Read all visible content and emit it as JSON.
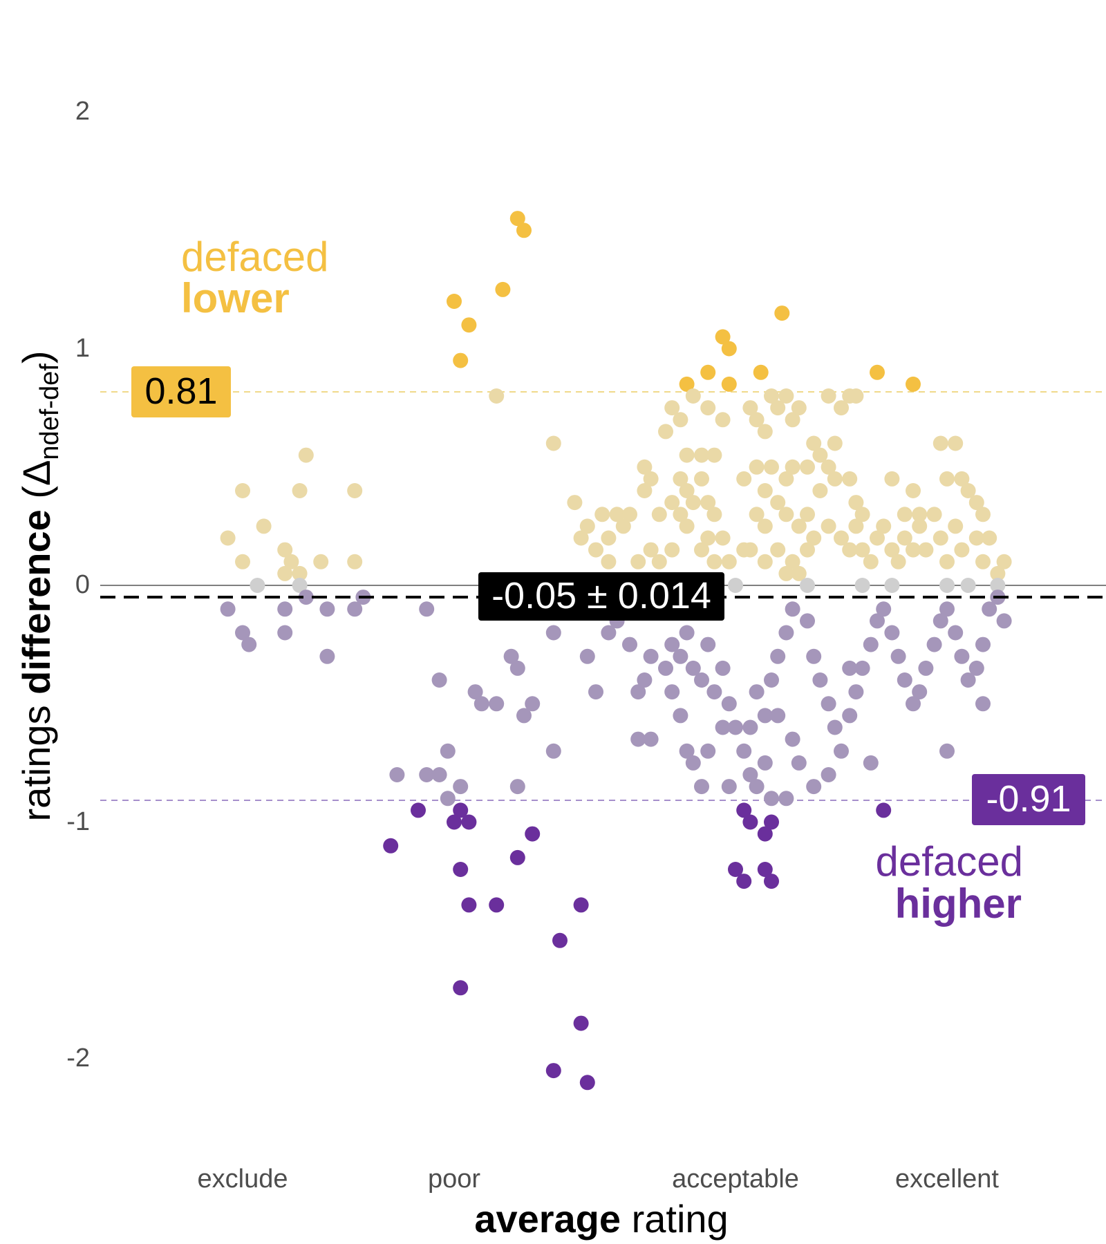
{
  "chart_data": {
    "type": "scatter",
    "title": "",
    "xlabel": {
      "bold": "average",
      "regular": " rating"
    },
    "ylabel": {
      "regular": "ratings ",
      "bold": "difference",
      "symbol": " (Δ",
      "subscript": "ndef-def",
      "close": ")"
    },
    "x_categories": [
      "exclude",
      "poor",
      "acceptable",
      "excellent"
    ],
    "x_category_positions": [
      1,
      2,
      3.33,
      4.33
    ],
    "xlim": [
      0.0,
      5.0
    ],
    "y_ticks": [
      {
        "value": 2,
        "label": "2"
      },
      {
        "value": 1,
        "label": "1"
      },
      {
        "value": 0,
        "label": "0"
      },
      {
        "value": -1,
        "label": "-1"
      },
      {
        "value": -2,
        "label": "-2"
      }
    ],
    "ylim": [
      -2.45,
      2.45
    ],
    "grid": false,
    "colors": {
      "lower_strong": "#f4c042",
      "lower_light": "#ead9a7",
      "neutral": "#cfcfcf",
      "higher_light": "#a596ba",
      "higher_strong": "#6a2f9c",
      "zero_line": "#7f7f7f",
      "mean_line": "#000000"
    },
    "reference_lines": {
      "upper": {
        "value": 0.81,
        "label": "0.81"
      },
      "lower": {
        "value": -0.91,
        "label": "-0.91"
      },
      "mean": {
        "value": -0.05,
        "label": "-0.05 ± 0.014"
      }
    },
    "annotations": {
      "lower": {
        "line1": "defaced",
        "line2": "lower"
      },
      "higher": {
        "line1": "defaced",
        "line2": "higher"
      }
    },
    "series": [
      {
        "group": "lower_strong",
        "points": [
          [
            2.3,
            1.55
          ],
          [
            2.33,
            1.5
          ],
          [
            2.23,
            1.25
          ],
          [
            2.0,
            1.2
          ],
          [
            2.07,
            1.1
          ],
          [
            2.03,
            0.95
          ],
          [
            3.55,
            1.15
          ],
          [
            3.27,
            1.05
          ],
          [
            3.3,
            1.0
          ],
          [
            3.2,
            0.9
          ],
          [
            3.45,
            0.9
          ],
          [
            3.1,
            0.85
          ],
          [
            3.3,
            0.85
          ],
          [
            4.0,
            0.9
          ],
          [
            4.17,
            0.85
          ]
        ]
      },
      {
        "group": "lower_light",
        "points": [
          [
            1.0,
            0.4
          ],
          [
            1.27,
            0.4
          ],
          [
            1.53,
            0.4
          ],
          [
            1.3,
            0.55
          ],
          [
            1.1,
            0.25
          ],
          [
            0.93,
            0.2
          ],
          [
            1.2,
            0.15
          ],
          [
            1.0,
            0.1
          ],
          [
            1.23,
            0.1
          ],
          [
            1.37,
            0.1
          ],
          [
            1.53,
            0.1
          ],
          [
            1.2,
            0.05
          ],
          [
            1.27,
            0.05
          ],
          [
            2.2,
            0.8
          ],
          [
            2.47,
            0.6
          ],
          [
            2.57,
            0.35
          ],
          [
            2.6,
            0.2
          ],
          [
            2.67,
            0.15
          ],
          [
            2.63,
            0.25
          ],
          [
            2.7,
            0.3
          ],
          [
            2.77,
            0.3
          ],
          [
            2.73,
            0.2
          ],
          [
            2.8,
            0.25
          ],
          [
            2.83,
            0.3
          ],
          [
            2.73,
            0.1
          ],
          [
            2.87,
            0.1
          ],
          [
            2.93,
            0.15
          ],
          [
            2.97,
            0.1
          ],
          [
            3.03,
            0.15
          ],
          [
            2.9,
            0.5
          ],
          [
            2.93,
            0.45
          ],
          [
            2.9,
            0.4
          ],
          [
            2.97,
            0.3
          ],
          [
            3.03,
            0.35
          ],
          [
            3.07,
            0.45
          ],
          [
            3.1,
            0.4
          ],
          [
            3.13,
            0.35
          ],
          [
            3.17,
            0.45
          ],
          [
            3.2,
            0.35
          ],
          [
            3.23,
            0.3
          ],
          [
            3.07,
            0.7
          ],
          [
            3.13,
            0.8
          ],
          [
            3.1,
            0.55
          ],
          [
            3.17,
            0.55
          ],
          [
            3.23,
            0.55
          ],
          [
            3.27,
            0.7
          ],
          [
            3.07,
            0.3
          ],
          [
            3.1,
            0.25
          ],
          [
            3.17,
            0.15
          ],
          [
            3.2,
            0.2
          ],
          [
            3.27,
            0.2
          ],
          [
            3.3,
            0.1
          ],
          [
            3.37,
            0.15
          ],
          [
            3.23,
            0.1
          ],
          [
            3.4,
            0.75
          ],
          [
            3.43,
            0.7
          ],
          [
            3.47,
            0.65
          ],
          [
            3.5,
            0.8
          ],
          [
            3.53,
            0.75
          ],
          [
            3.57,
            0.8
          ],
          [
            3.6,
            0.7
          ],
          [
            3.63,
            0.75
          ],
          [
            3.37,
            0.45
          ],
          [
            3.43,
            0.5
          ],
          [
            3.5,
            0.5
          ],
          [
            3.57,
            0.45
          ],
          [
            3.6,
            0.5
          ],
          [
            3.67,
            0.5
          ],
          [
            3.7,
            0.6
          ],
          [
            3.73,
            0.55
          ],
          [
            3.77,
            0.5
          ],
          [
            3.8,
            0.6
          ],
          [
            3.43,
            0.3
          ],
          [
            3.47,
            0.25
          ],
          [
            3.53,
            0.35
          ],
          [
            3.57,
            0.3
          ],
          [
            3.63,
            0.25
          ],
          [
            3.67,
            0.3
          ],
          [
            3.4,
            0.15
          ],
          [
            3.47,
            0.1
          ],
          [
            3.53,
            0.15
          ],
          [
            3.6,
            0.1
          ],
          [
            3.63,
            0.05
          ],
          [
            3.67,
            0.15
          ],
          [
            3.7,
            0.2
          ],
          [
            3.57,
            0.05
          ],
          [
            3.77,
            0.8
          ],
          [
            3.83,
            0.75
          ],
          [
            3.87,
            0.8
          ],
          [
            3.9,
            0.8
          ],
          [
            3.8,
            0.45
          ],
          [
            3.87,
            0.45
          ],
          [
            3.9,
            0.35
          ],
          [
            3.93,
            0.3
          ],
          [
            3.77,
            0.25
          ],
          [
            3.83,
            0.2
          ],
          [
            3.87,
            0.15
          ],
          [
            3.9,
            0.25
          ],
          [
            3.93,
            0.15
          ],
          [
            3.97,
            0.1
          ],
          [
            4.0,
            0.2
          ],
          [
            4.03,
            0.25
          ],
          [
            4.07,
            0.15
          ],
          [
            4.1,
            0.1
          ],
          [
            4.13,
            0.2
          ],
          [
            4.17,
            0.15
          ],
          [
            4.2,
            0.25
          ],
          [
            4.23,
            0.15
          ],
          [
            4.07,
            0.45
          ],
          [
            4.13,
            0.3
          ],
          [
            4.17,
            0.4
          ],
          [
            4.2,
            0.3
          ],
          [
            4.27,
            0.3
          ],
          [
            4.3,
            0.6
          ],
          [
            4.33,
            0.45
          ],
          [
            4.37,
            0.6
          ],
          [
            4.4,
            0.45
          ],
          [
            4.43,
            0.4
          ],
          [
            4.47,
            0.35
          ],
          [
            4.5,
            0.3
          ],
          [
            4.3,
            0.2
          ],
          [
            4.33,
            0.1
          ],
          [
            4.37,
            0.25
          ],
          [
            4.4,
            0.15
          ],
          [
            4.47,
            0.2
          ],
          [
            4.5,
            0.1
          ],
          [
            4.53,
            0.2
          ],
          [
            4.57,
            0.05
          ],
          [
            4.6,
            0.1
          ],
          [
            3.03,
            0.75
          ],
          [
            3.0,
            0.65
          ],
          [
            3.47,
            0.4
          ],
          [
            3.73,
            0.4
          ],
          [
            3.2,
            0.75
          ]
        ]
      },
      {
        "group": "neutral",
        "points": [
          [
            1.07,
            0.0
          ],
          [
            1.27,
            0.0
          ],
          [
            3.33,
            0.0
          ],
          [
            3.67,
            0.0
          ],
          [
            3.93,
            0.0
          ],
          [
            4.07,
            0.0
          ],
          [
            4.33,
            0.0
          ],
          [
            4.43,
            0.0
          ],
          [
            4.57,
            0.0
          ]
        ]
      },
      {
        "group": "higher_light",
        "points": [
          [
            0.93,
            -0.1
          ],
          [
            1.0,
            -0.2
          ],
          [
            1.03,
            -0.25
          ],
          [
            1.2,
            -0.1
          ],
          [
            1.2,
            -0.2
          ],
          [
            1.3,
            -0.05
          ],
          [
            1.4,
            -0.1
          ],
          [
            1.4,
            -0.3
          ],
          [
            1.53,
            -0.1
          ],
          [
            1.57,
            -0.05
          ],
          [
            1.87,
            -0.1
          ],
          [
            1.93,
            -0.4
          ],
          [
            1.87,
            -0.8
          ],
          [
            1.93,
            -0.8
          ],
          [
            1.73,
            -0.8
          ],
          [
            1.97,
            -0.7
          ],
          [
            1.97,
            -0.9
          ],
          [
            2.03,
            -0.85
          ],
          [
            2.1,
            -0.45
          ],
          [
            2.13,
            -0.5
          ],
          [
            2.2,
            -0.5
          ],
          [
            2.27,
            -0.3
          ],
          [
            2.3,
            -0.35
          ],
          [
            2.33,
            -0.55
          ],
          [
            2.37,
            -0.5
          ],
          [
            2.47,
            -0.7
          ],
          [
            2.3,
            -0.85
          ],
          [
            2.47,
            -0.2
          ],
          [
            2.63,
            -0.3
          ],
          [
            2.67,
            -0.45
          ],
          [
            2.73,
            -0.2
          ],
          [
            2.77,
            -0.15
          ],
          [
            2.83,
            -0.25
          ],
          [
            2.87,
            -0.45
          ],
          [
            2.9,
            -0.4
          ],
          [
            2.93,
            -0.3
          ],
          [
            2.87,
            -0.65
          ],
          [
            2.93,
            -0.65
          ],
          [
            3.0,
            -0.35
          ],
          [
            3.03,
            -0.45
          ],
          [
            3.07,
            -0.55
          ],
          [
            3.1,
            -0.7
          ],
          [
            3.13,
            -0.75
          ],
          [
            3.2,
            -0.7
          ],
          [
            3.03,
            -0.25
          ],
          [
            3.07,
            -0.3
          ],
          [
            3.1,
            -0.2
          ],
          [
            3.13,
            -0.35
          ],
          [
            3.17,
            -0.4
          ],
          [
            3.2,
            -0.25
          ],
          [
            3.23,
            -0.45
          ],
          [
            3.27,
            -0.35
          ],
          [
            3.3,
            -0.5
          ],
          [
            3.33,
            -0.6
          ],
          [
            3.37,
            -0.7
          ],
          [
            3.4,
            -0.8
          ],
          [
            3.43,
            -0.85
          ],
          [
            3.47,
            -0.75
          ],
          [
            3.5,
            -0.9
          ],
          [
            3.3,
            -0.85
          ],
          [
            3.17,
            -0.85
          ],
          [
            3.4,
            -0.6
          ],
          [
            3.47,
            -0.55
          ],
          [
            3.5,
            -0.4
          ],
          [
            3.53,
            -0.3
          ],
          [
            3.57,
            -0.2
          ],
          [
            3.6,
            -0.1
          ],
          [
            3.67,
            -0.15
          ],
          [
            3.7,
            -0.3
          ],
          [
            3.73,
            -0.4
          ],
          [
            3.77,
            -0.5
          ],
          [
            3.8,
            -0.6
          ],
          [
            3.83,
            -0.7
          ],
          [
            3.87,
            -0.55
          ],
          [
            3.9,
            -0.45
          ],
          [
            3.93,
            -0.35
          ],
          [
            3.97,
            -0.25
          ],
          [
            4.0,
            -0.15
          ],
          [
            4.03,
            -0.1
          ],
          [
            4.07,
            -0.2
          ],
          [
            4.1,
            -0.3
          ],
          [
            4.13,
            -0.4
          ],
          [
            4.17,
            -0.5
          ],
          [
            4.2,
            -0.45
          ],
          [
            4.23,
            -0.35
          ],
          [
            4.27,
            -0.25
          ],
          [
            4.3,
            -0.15
          ],
          [
            4.33,
            -0.1
          ],
          [
            4.37,
            -0.2
          ],
          [
            4.4,
            -0.3
          ],
          [
            4.43,
            -0.4
          ],
          [
            4.47,
            -0.35
          ],
          [
            4.5,
            -0.25
          ],
          [
            4.53,
            -0.1
          ],
          [
            4.57,
            -0.05
          ],
          [
            4.6,
            -0.15
          ],
          [
            4.5,
            -0.5
          ],
          [
            4.33,
            -0.7
          ],
          [
            3.97,
            -0.75
          ],
          [
            3.6,
            -0.65
          ],
          [
            3.63,
            -0.75
          ],
          [
            3.7,
            -0.85
          ],
          [
            3.57,
            -0.9
          ],
          [
            3.77,
            -0.8
          ],
          [
            3.87,
            -0.35
          ],
          [
            3.53,
            -0.55
          ],
          [
            3.43,
            -0.45
          ],
          [
            3.27,
            -0.6
          ]
        ]
      },
      {
        "group": "higher_strong",
        "points": [
          [
            1.7,
            -1.1
          ],
          [
            1.83,
            -0.95
          ],
          [
            2.03,
            -0.95
          ],
          [
            2.07,
            -1.0
          ],
          [
            2.0,
            -1.0
          ],
          [
            2.03,
            -1.2
          ],
          [
            2.07,
            -1.35
          ],
          [
            2.2,
            -1.35
          ],
          [
            2.37,
            -1.05
          ],
          [
            2.3,
            -1.15
          ],
          [
            2.6,
            -1.35
          ],
          [
            2.5,
            -1.5
          ],
          [
            2.03,
            -1.7
          ],
          [
            2.6,
            -1.85
          ],
          [
            2.47,
            -2.05
          ],
          [
            2.63,
            -2.1
          ],
          [
            3.37,
            -0.95
          ],
          [
            3.4,
            -1.0
          ],
          [
            3.47,
            -1.05
          ],
          [
            3.5,
            -1.0
          ],
          [
            3.33,
            -1.2
          ],
          [
            3.37,
            -1.25
          ],
          [
            3.47,
            -1.2
          ],
          [
            3.5,
            -1.25
          ],
          [
            4.03,
            -0.95
          ]
        ]
      }
    ]
  }
}
